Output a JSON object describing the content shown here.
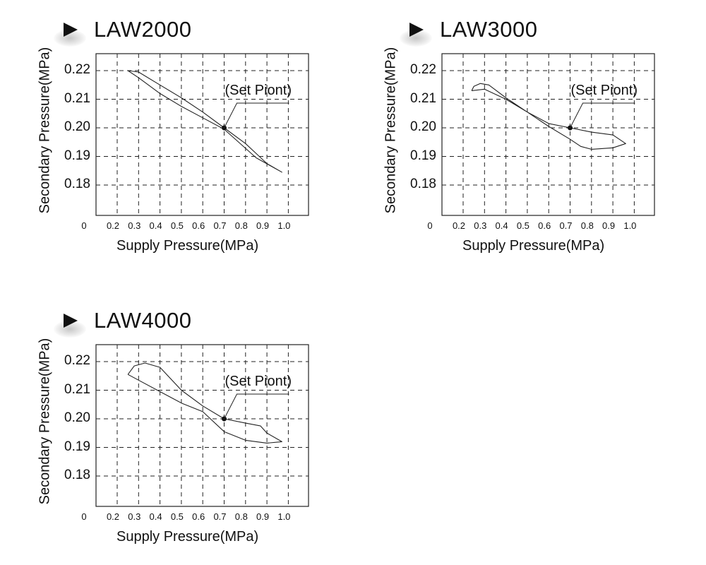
{
  "chart_data": [
    {
      "type": "line",
      "title": "LAW2000",
      "xlabel": "Supply Pressure(MPa)",
      "ylabel": "Secondary Pressure(MPa)",
      "x_tick_labels": [
        "0",
        "0.2",
        "0.3",
        "0.4",
        "0.5",
        "0.6",
        "0.7",
        "0.8",
        "0.9",
        "1.0"
      ],
      "y_tick_labels": [
        "0.22",
        "0.21",
        "0.20",
        "0.19",
        "0.18"
      ],
      "ylim": [
        0.17,
        0.226
      ],
      "grid": true,
      "annotation": {
        "text": "(Set Piont)",
        "x": 0.7,
        "y": 0.2
      },
      "series": [
        {
          "values": [
            [
              0.25,
              0.22
            ],
            [
              0.3,
              0.2195
            ],
            [
              0.4,
              0.215
            ],
            [
              0.5,
              0.2105
            ],
            [
              0.6,
              0.2055
            ],
            [
              0.7,
              0.2
            ],
            [
              0.8,
              0.1945
            ],
            [
              0.85,
              0.191
            ],
            [
              0.9,
              0.1875
            ],
            [
              0.97,
              0.1845
            ],
            [
              0.85,
              0.1895
            ],
            [
              0.7,
              0.1995
            ],
            [
              0.6,
              0.2035
            ],
            [
              0.5,
              0.2075
            ],
            [
              0.4,
              0.212
            ],
            [
              0.3,
              0.2175
            ],
            [
              0.25,
              0.22
            ]
          ]
        }
      ]
    },
    {
      "type": "line",
      "title": "LAW3000",
      "xlabel": "Supply Pressure(MPa)",
      "ylabel": "Secondary Pressure(MPa)",
      "x_tick_labels": [
        "0",
        "0.2",
        "0.3",
        "0.4",
        "0.5",
        "0.6",
        "0.7",
        "0.8",
        "0.9",
        "1.0"
      ],
      "y_tick_labels": [
        "0.22",
        "0.21",
        "0.20",
        "0.19",
        "0.18"
      ],
      "ylim": [
        0.17,
        0.226
      ],
      "grid": true,
      "annotation": {
        "text": "(Set Piont)",
        "x": 0.7,
        "y": 0.2
      },
      "series": [
        {
          "values": [
            [
              0.24,
              0.213
            ],
            [
              0.25,
              0.2145
            ],
            [
              0.28,
              0.2155
            ],
            [
              0.32,
              0.215
            ],
            [
              0.4,
              0.2105
            ],
            [
              0.5,
              0.2055
            ],
            [
              0.6,
              0.2015
            ],
            [
              0.7,
              0.2
            ],
            [
              0.8,
              0.1985
            ],
            [
              0.9,
              0.1975
            ],
            [
              0.96,
              0.1945
            ],
            [
              0.9,
              0.193
            ],
            [
              0.8,
              0.1925
            ],
            [
              0.75,
              0.1935
            ],
            [
              0.7,
              0.196
            ],
            [
              0.6,
              0.2005
            ],
            [
              0.5,
              0.2055
            ],
            [
              0.4,
              0.21
            ],
            [
              0.3,
              0.2135
            ],
            [
              0.24,
              0.213
            ]
          ]
        }
      ]
    },
    {
      "type": "line",
      "title": "LAW4000",
      "xlabel": "Supply Pressure(MPa)",
      "ylabel": "Secondary Pressure(MPa)",
      "x_tick_labels": [
        "0",
        "0.2",
        "0.3",
        "0.4",
        "0.5",
        "0.6",
        "0.7",
        "0.8",
        "0.9",
        "1.0"
      ],
      "y_tick_labels": [
        "0.22",
        "0.21",
        "0.20",
        "0.19",
        "0.18"
      ],
      "ylim": [
        0.17,
        0.226
      ],
      "grid": true,
      "annotation": {
        "text": "(Set Piont)",
        "x": 0.7,
        "y": 0.2
      },
      "series": [
        {
          "values": [
            [
              0.25,
              0.2155
            ],
            [
              0.28,
              0.2185
            ],
            [
              0.33,
              0.2195
            ],
            [
              0.4,
              0.218
            ],
            [
              0.5,
              0.21
            ],
            [
              0.6,
              0.2045
            ],
            [
              0.7,
              0.2
            ],
            [
              0.8,
              0.1985
            ],
            [
              0.87,
              0.1975
            ],
            [
              0.9,
              0.195
            ],
            [
              0.97,
              0.192
            ],
            [
              0.9,
              0.1915
            ],
            [
              0.8,
              0.1925
            ],
            [
              0.7,
              0.1955
            ],
            [
              0.6,
              0.2025
            ],
            [
              0.5,
              0.2055
            ],
            [
              0.4,
              0.2095
            ],
            [
              0.3,
              0.2135
            ],
            [
              0.25,
              0.2155
            ]
          ]
        }
      ]
    }
  ]
}
